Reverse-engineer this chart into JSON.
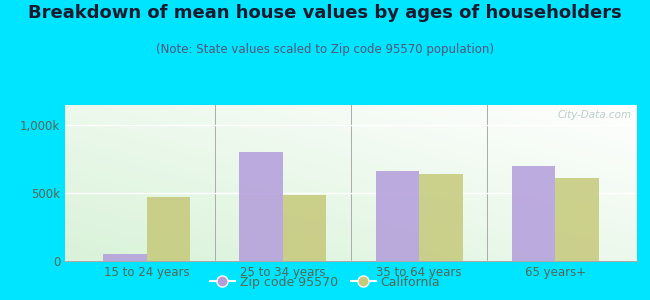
{
  "title": "Breakdown of mean house values by ages of householders",
  "subtitle": "(Note: State values scaled to Zip code 95570 population)",
  "categories": [
    "15 to 24 years",
    "25 to 34 years",
    "35 to 64 years",
    "65 years+"
  ],
  "zip_values": [
    55000,
    800000,
    660000,
    700000
  ],
  "ca_values": [
    470000,
    490000,
    645000,
    615000
  ],
  "zip_color": "#b39ddb",
  "ca_color": "#c5c97a",
  "background_outer": "#00e5ff",
  "ylim": [
    0,
    1150000
  ],
  "ytick_vals": [
    0,
    500000,
    1000000
  ],
  "ytick_labels": [
    "0",
    "500k",
    "1,000k"
  ],
  "legend_zip_label": "Zip code 95570",
  "legend_ca_label": "California",
  "bar_width": 0.32,
  "title_fontsize": 13,
  "subtitle_fontsize": 8.5,
  "tick_fontsize": 8.5,
  "legend_fontsize": 9,
  "title_color": "#1a1a2e",
  "subtitle_color": "#555577",
  "tick_color": "#556655",
  "watermark_color": "#bbcccc"
}
